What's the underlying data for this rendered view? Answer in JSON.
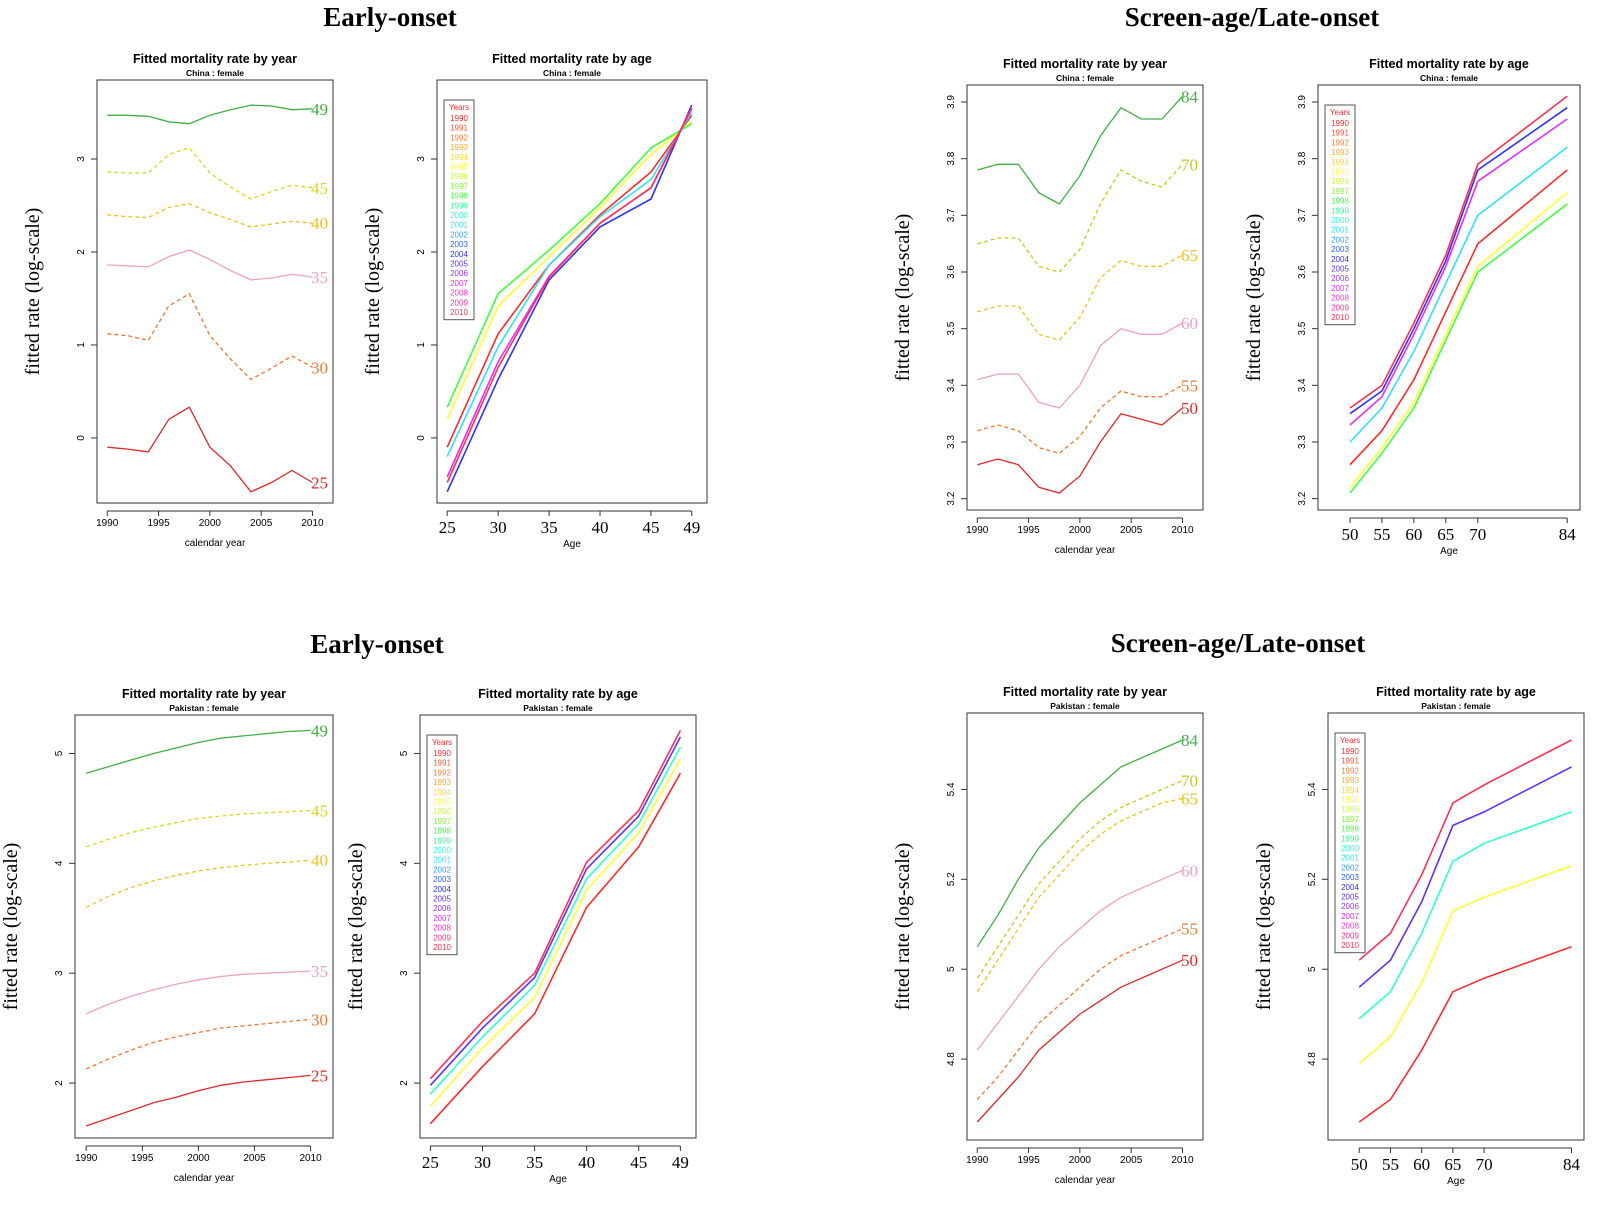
{
  "legend_title": "Years",
  "legend_years": [
    "1990",
    "1991",
    "1992",
    "1993",
    "1994",
    "1995",
    "1996",
    "1997",
    "1998",
    "1999",
    "2000",
    "2001",
    "2002",
    "2003",
    "2004",
    "2005",
    "2006",
    "2007",
    "2008",
    "2009",
    "2010"
  ],
  "year_palette": [
    "#ff2a2a",
    "#ff5530",
    "#ff8030",
    "#ffaa30",
    "#ffd530",
    "#ffff30",
    "#c8ff30",
    "#80ff30",
    "#40ff40",
    "#30ff90",
    "#30ffd0",
    "#30e0ff",
    "#30a0ff",
    "#3060ff",
    "#3030ff",
    "#6030ff",
    "#a030ff",
    "#e030ff",
    "#ff30d0",
    "#ff3090",
    "#ff3050"
  ],
  "group_colors": {
    "25": "#e02828",
    "30": "#f07830",
    "35": "#f0a0c0",
    "40": "#f0c020",
    "45": "#d8d820",
    "49": "#40b040",
    "50": "#e02828",
    "55": "#f07830",
    "60": "#f0a0c0",
    "65": "#f0c020",
    "70": "#c8c820",
    "84": "#40b040"
  },
  "sections": {
    "tl": "Early-onset",
    "tr": "Screen-age/Late-onset",
    "bl": "Early-onset",
    "br": "Screen-age/Late-onset"
  },
  "chart_data": [
    {
      "id": "china-early-year",
      "type": "line",
      "title": "Fitted mortality rate by year",
      "subtitle": "China : female",
      "xlabel": "calendar year",
      "ylabel": "fitted rate (log-scale)",
      "xlim": [
        1989,
        2012
      ],
      "ylim": [
        -0.7,
        3.85
      ],
      "xticks": [
        1990,
        1995,
        2000,
        2005,
        2010
      ],
      "yticks": [
        0,
        1,
        2,
        3
      ],
      "x": [
        1990,
        1992,
        1994,
        1996,
        1998,
        2000,
        2002,
        2004,
        2006,
        2008,
        2010
      ],
      "series": [
        {
          "name": "25",
          "values": [
            -0.1,
            -0.12,
            -0.15,
            0.2,
            0.33,
            -0.1,
            -0.3,
            -0.58,
            -0.48,
            -0.35,
            -0.48
          ]
        },
        {
          "name": "30",
          "values": [
            1.12,
            1.1,
            1.05,
            1.42,
            1.55,
            1.1,
            0.85,
            0.63,
            0.75,
            0.88,
            0.76
          ]
        },
        {
          "name": "35",
          "values": [
            1.86,
            1.85,
            1.84,
            1.95,
            2.02,
            1.92,
            1.8,
            1.7,
            1.72,
            1.76,
            1.73
          ]
        },
        {
          "name": "40",
          "values": [
            2.4,
            2.38,
            2.37,
            2.48,
            2.52,
            2.42,
            2.35,
            2.27,
            2.3,
            2.33,
            2.31
          ]
        },
        {
          "name": "45",
          "values": [
            2.86,
            2.85,
            2.85,
            3.05,
            3.12,
            2.85,
            2.7,
            2.57,
            2.65,
            2.72,
            2.69
          ]
        },
        {
          "name": "49",
          "values": [
            3.47,
            3.47,
            3.46,
            3.4,
            3.38,
            3.47,
            3.53,
            3.58,
            3.57,
            3.53,
            3.54
          ]
        }
      ]
    },
    {
      "id": "china-early-age",
      "type": "line",
      "title": "Fitted mortality rate by age",
      "subtitle": "China : female",
      "xlabel": "Age",
      "ylabel": "fitted rate (log-scale)",
      "xlim": [
        24,
        50.5
      ],
      "ylim": [
        -0.7,
        3.85
      ],
      "xticks": [
        25,
        30,
        35,
        40,
        45,
        49
      ],
      "yticks": [
        0,
        1,
        2,
        3
      ],
      "x": [
        25,
        30,
        35,
        40,
        45,
        49
      ],
      "series": [
        {
          "name": "1990",
          "values": [
            -0.1,
            1.12,
            1.86,
            2.4,
            2.86,
            3.47
          ]
        },
        {
          "name": "1995",
          "values": [
            0.2,
            1.42,
            1.95,
            2.48,
            3.05,
            3.4
          ]
        },
        {
          "name": "1998",
          "values": [
            0.33,
            1.55,
            2.02,
            2.52,
            3.12,
            3.38
          ]
        },
        {
          "name": "2001",
          "values": [
            -0.2,
            0.98,
            1.86,
            2.38,
            2.78,
            3.5
          ]
        },
        {
          "name": "2004",
          "values": [
            -0.58,
            0.63,
            1.7,
            2.27,
            2.57,
            3.58
          ]
        },
        {
          "name": "2007",
          "values": [
            -0.42,
            0.82,
            1.74,
            2.31,
            2.69,
            3.55
          ]
        },
        {
          "name": "2010",
          "values": [
            -0.48,
            0.76,
            1.73,
            2.31,
            2.69,
            3.54
          ]
        }
      ]
    },
    {
      "id": "china-late-year",
      "type": "line",
      "title": "Fitted mortality rate by year",
      "subtitle": "China : female",
      "xlabel": "calendar year",
      "ylabel": "fitted rate (log-scale)",
      "xlim": [
        1989,
        2012
      ],
      "ylim": [
        3.18,
        3.93
      ],
      "xticks": [
        1990,
        1995,
        2000,
        2005,
        2010
      ],
      "yticks": [
        3.2,
        3.3,
        3.4,
        3.5,
        3.6,
        3.7,
        3.8,
        3.9
      ],
      "x": [
        1990,
        1992,
        1994,
        1996,
        1998,
        2000,
        2002,
        2004,
        2006,
        2008,
        2010
      ],
      "series": [
        {
          "name": "50",
          "values": [
            3.26,
            3.27,
            3.26,
            3.22,
            3.21,
            3.24,
            3.3,
            3.35,
            3.34,
            3.33,
            3.36
          ]
        },
        {
          "name": "55",
          "values": [
            3.32,
            3.33,
            3.32,
            3.29,
            3.28,
            3.31,
            3.36,
            3.39,
            3.38,
            3.38,
            3.4
          ]
        },
        {
          "name": "60",
          "values": [
            3.41,
            3.42,
            3.42,
            3.37,
            3.36,
            3.4,
            3.47,
            3.5,
            3.49,
            3.49,
            3.51
          ]
        },
        {
          "name": "65",
          "values": [
            3.53,
            3.54,
            3.54,
            3.49,
            3.48,
            3.52,
            3.59,
            3.62,
            3.61,
            3.61,
            3.63
          ]
        },
        {
          "name": "70",
          "values": [
            3.65,
            3.66,
            3.66,
            3.61,
            3.6,
            3.64,
            3.72,
            3.78,
            3.76,
            3.75,
            3.79
          ]
        },
        {
          "name": "84",
          "values": [
            3.78,
            3.79,
            3.79,
            3.74,
            3.72,
            3.77,
            3.84,
            3.89,
            3.87,
            3.87,
            3.91
          ]
        }
      ]
    },
    {
      "id": "china-late-age",
      "type": "line",
      "title": "Fitted mortality rate by age",
      "subtitle": "China : female",
      "xlabel": "Age",
      "ylabel": "fitted rate (log-scale)",
      "xlim": [
        45,
        86
      ],
      "ylim": [
        3.18,
        3.93
      ],
      "xticks": [
        50,
        55,
        60,
        65,
        70,
        84
      ],
      "yticks": [
        3.2,
        3.3,
        3.4,
        3.5,
        3.6,
        3.7,
        3.8,
        3.9
      ],
      "x": [
        50,
        55,
        60,
        65,
        70,
        84
      ],
      "series": [
        {
          "name": "1990",
          "values": [
            3.26,
            3.32,
            3.41,
            3.53,
            3.65,
            3.78
          ]
        },
        {
          "name": "1995",
          "values": [
            3.22,
            3.29,
            3.37,
            3.49,
            3.61,
            3.74
          ]
        },
        {
          "name": "1998",
          "values": [
            3.21,
            3.28,
            3.36,
            3.48,
            3.6,
            3.72
          ]
        },
        {
          "name": "2001",
          "values": [
            3.3,
            3.36,
            3.46,
            3.58,
            3.7,
            3.82
          ]
        },
        {
          "name": "2004",
          "values": [
            3.35,
            3.39,
            3.5,
            3.62,
            3.78,
            3.89
          ]
        },
        {
          "name": "2007",
          "values": [
            3.33,
            3.38,
            3.49,
            3.61,
            3.76,
            3.87
          ]
        },
        {
          "name": "2010",
          "values": [
            3.36,
            3.4,
            3.51,
            3.63,
            3.79,
            3.91
          ]
        }
      ]
    },
    {
      "id": "pakistan-early-year",
      "type": "line",
      "title": "Fitted mortality rate by year",
      "subtitle": "Pakistan : female",
      "xlabel": "calendar year",
      "ylabel": "fitted rate (log-scale)",
      "xlim": [
        1989,
        2012
      ],
      "ylim": [
        1.5,
        5.35
      ],
      "xticks": [
        1990,
        1995,
        2000,
        2005,
        2010
      ],
      "yticks": [
        2,
        3,
        4,
        5
      ],
      "x": [
        1990,
        1992,
        1994,
        1996,
        1998,
        2000,
        2002,
        2004,
        2006,
        2008,
        2010
      ],
      "series": [
        {
          "name": "25",
          "values": [
            1.61,
            1.68,
            1.75,
            1.82,
            1.87,
            1.93,
            1.98,
            2.01,
            2.03,
            2.05,
            2.07
          ]
        },
        {
          "name": "30",
          "values": [
            2.13,
            2.22,
            2.3,
            2.37,
            2.42,
            2.46,
            2.5,
            2.52,
            2.54,
            2.56,
            2.58
          ]
        },
        {
          "name": "35",
          "values": [
            2.63,
            2.72,
            2.79,
            2.85,
            2.9,
            2.94,
            2.97,
            2.99,
            3.0,
            3.01,
            3.02
          ]
        },
        {
          "name": "40",
          "values": [
            3.6,
            3.7,
            3.78,
            3.84,
            3.89,
            3.93,
            3.96,
            3.98,
            4.0,
            4.01,
            4.03
          ]
        },
        {
          "name": "45",
          "values": [
            4.15,
            4.22,
            4.28,
            4.33,
            4.37,
            4.41,
            4.43,
            4.45,
            4.46,
            4.47,
            4.48
          ]
        },
        {
          "name": "49",
          "values": [
            4.82,
            4.88,
            4.94,
            5.0,
            5.05,
            5.1,
            5.14,
            5.16,
            5.18,
            5.2,
            5.21
          ]
        }
      ]
    },
    {
      "id": "pakistan-early-age",
      "type": "line",
      "title": "Fitted mortality rate by age",
      "subtitle": "Pakistan : female",
      "xlabel": "Age",
      "ylabel": "fitted rate (log-scale)",
      "xlim": [
        24,
        50.5
      ],
      "ylim": [
        1.5,
        5.35
      ],
      "xticks": [
        25,
        30,
        35,
        40,
        45,
        49
      ],
      "yticks": [
        2,
        3,
        4,
        5
      ],
      "x": [
        25,
        30,
        35,
        40,
        45,
        49
      ],
      "series": [
        {
          "name": "1990",
          "values": [
            1.63,
            2.15,
            2.63,
            3.6,
            4.15,
            4.82
          ]
        },
        {
          "name": "1995",
          "values": [
            1.79,
            2.32,
            2.78,
            3.76,
            4.28,
            4.95
          ]
        },
        {
          "name": "2000",
          "values": [
            1.9,
            2.42,
            2.89,
            3.86,
            4.36,
            5.06
          ]
        },
        {
          "name": "2005",
          "values": [
            1.98,
            2.5,
            2.96,
            3.95,
            4.43,
            5.15
          ]
        },
        {
          "name": "2010",
          "values": [
            2.04,
            2.56,
            3.0,
            4.01,
            4.48,
            5.21
          ]
        }
      ]
    },
    {
      "id": "pakistan-late-year",
      "type": "line",
      "title": "Fitted mortality rate by year",
      "subtitle": "Pakistan : female",
      "xlabel": "calendar year",
      "ylabel": "fitted rate (log-scale)",
      "xlim": [
        1989,
        2012
      ],
      "ylim": [
        4.62,
        5.57
      ],
      "xticks": [
        1990,
        1995,
        2000,
        2005,
        2010
      ],
      "yticks": [
        4.8,
        5.0,
        5.2,
        5.4
      ],
      "x": [
        1990,
        1992,
        1994,
        1996,
        1998,
        2000,
        2002,
        2004,
        2006,
        2008,
        2010
      ],
      "series": [
        {
          "name": "50",
          "values": [
            4.66,
            4.71,
            4.76,
            4.82,
            4.86,
            4.9,
            4.93,
            4.96,
            4.98,
            5.0,
            5.02
          ]
        },
        {
          "name": "55",
          "values": [
            4.71,
            4.76,
            4.82,
            4.88,
            4.92,
            4.96,
            5.0,
            5.03,
            5.05,
            5.07,
            5.09
          ]
        },
        {
          "name": "60",
          "values": [
            4.82,
            4.88,
            4.94,
            5.0,
            5.05,
            5.09,
            5.13,
            5.16,
            5.18,
            5.2,
            5.22
          ]
        },
        {
          "name": "65",
          "values": [
            4.95,
            5.02,
            5.09,
            5.16,
            5.21,
            5.26,
            5.3,
            5.33,
            5.35,
            5.37,
            5.38
          ]
        },
        {
          "name": "70",
          "values": [
            4.98,
            5.05,
            5.12,
            5.19,
            5.24,
            5.29,
            5.33,
            5.36,
            5.38,
            5.4,
            5.42
          ]
        },
        {
          "name": "84",
          "values": [
            5.05,
            5.12,
            5.2,
            5.27,
            5.32,
            5.37,
            5.41,
            5.45,
            5.47,
            5.49,
            5.51
          ]
        }
      ]
    },
    {
      "id": "pakistan-late-age",
      "type": "line",
      "title": "Fitted mortality rate by age",
      "subtitle": "Pakistan : female",
      "xlabel": "Age",
      "ylabel": "fitted rate (log-scale)",
      "xlim": [
        45,
        86
      ],
      "ylim": [
        4.62,
        5.57
      ],
      "xticks": [
        50,
        55,
        60,
        65,
        70,
        84
      ],
      "yticks": [
        4.8,
        5.0,
        5.2,
        5.4
      ],
      "x": [
        50,
        55,
        60,
        65,
        70,
        84
      ],
      "series": [
        {
          "name": "1990",
          "values": [
            4.66,
            4.71,
            4.82,
            4.95,
            4.98,
            5.05
          ]
        },
        {
          "name": "1995",
          "values": [
            4.79,
            4.85,
            4.97,
            5.13,
            5.16,
            5.23
          ]
        },
        {
          "name": "2000",
          "values": [
            4.89,
            4.95,
            5.08,
            5.24,
            5.28,
            5.35
          ]
        },
        {
          "name": "2005",
          "values": [
            4.96,
            5.02,
            5.15,
            5.32,
            5.35,
            5.45
          ]
        },
        {
          "name": "2010",
          "values": [
            5.02,
            5.08,
            5.21,
            5.37,
            5.41,
            5.51
          ]
        }
      ]
    }
  ]
}
